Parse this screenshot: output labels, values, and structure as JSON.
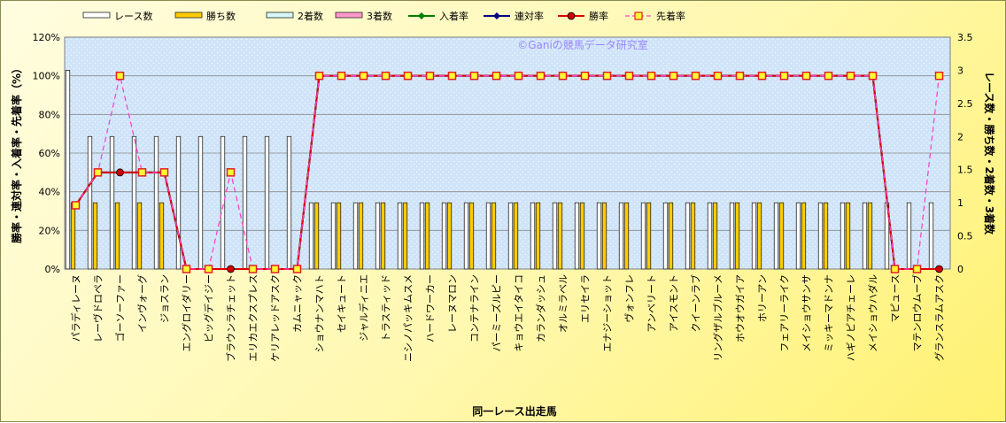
{
  "chart_data": {
    "type": "bar",
    "title": "",
    "watermark": "©Ganiの競馬データ研究室",
    "xlabel": "同一レース出走馬",
    "ylabel_left": "勝率・連対率・入着率・先着率（%）",
    "ylabel_right": "レース数・勝ち数・2着数・3着数",
    "ylim_left": [
      0,
      120
    ],
    "yticks_left": [
      "0%",
      "20%",
      "40%",
      "60%",
      "80%",
      "100%",
      "120%"
    ],
    "ylim_right": [
      0,
      3.5
    ],
    "yticks_right": [
      "0",
      "0.5",
      "1",
      "1.5",
      "2",
      "2.5",
      "3",
      "3.5"
    ],
    "grid": true,
    "legend_position": "top",
    "categories": [
      "パラディレーヌ",
      "レーヴドロペラ",
      "ゴーソーファー",
      "インヴォーグ",
      "ジョスラン",
      "エングロイダリー",
      "ピッグデイジー",
      "ブラウンラチェット",
      "エリカエクスプレス",
      "ケリアレッドアスク",
      "カムニャック",
      "ショウナンマハト",
      "セイキュート",
      "ジャルディニエ",
      "トラスティッド",
      "ニシノパッキムスメ",
      "ハードワーカー",
      "レーヌマロン",
      "コンテナライン",
      "パーミーズルピー",
      "キョウエイタイコ",
      "カランダッシュ",
      "オルミラベル",
      "エリセイラ",
      "エナジーショット",
      "ヴォンフレ",
      "アンベリート",
      "アイスモント",
      "クイーンラブ",
      "リングザルブルーメ",
      "ホウオウガイア",
      "ホリーアン",
      "フェアリーライク",
      "メイショウサンサ",
      "ミッキーマドンナ",
      "ハギノピアチェーレ",
      "メイショウハダル",
      "マピュース",
      "マテンロウムーブ",
      "グランスラムアスク"
    ],
    "series": [
      {
        "name": "レース数",
        "axis": "right",
        "kind": "bar",
        "color": "#ffffff",
        "values": [
          3,
          2,
          2,
          2,
          2,
          2,
          2,
          2,
          2,
          2,
          2,
          1,
          1,
          1,
          1,
          1,
          1,
          1,
          1,
          1,
          1,
          1,
          1,
          1,
          1,
          1,
          1,
          1,
          1,
          1,
          1,
          1,
          1,
          1,
          1,
          1,
          1,
          1,
          1,
          1
        ]
      },
      {
        "name": "勝ち数",
        "axis": "right",
        "kind": "bar",
        "color": "#ffcc00",
        "values": [
          1,
          1,
          1,
          1,
          1,
          0,
          0,
          0,
          0,
          0,
          0,
          1,
          1,
          1,
          1,
          1,
          1,
          1,
          1,
          1,
          1,
          1,
          1,
          1,
          1,
          1,
          1,
          1,
          1,
          1,
          1,
          1,
          1,
          1,
          1,
          1,
          1,
          0,
          0,
          0
        ]
      },
      {
        "name": "2着数",
        "axis": "right",
        "kind": "bar",
        "color": "#d8f8f8",
        "values": [
          0,
          0,
          0,
          0,
          0,
          0,
          0,
          0,
          0,
          0,
          0,
          0,
          0,
          0,
          0,
          0,
          0,
          0,
          0,
          0,
          0,
          0,
          0,
          0,
          0,
          0,
          0,
          0,
          0,
          0,
          0,
          0,
          0,
          0,
          0,
          0,
          0,
          0,
          0,
          0
        ]
      },
      {
        "name": "3着数",
        "axis": "right",
        "kind": "bar",
        "color": "#ff99cc",
        "values": [
          0,
          0,
          0,
          0,
          0,
          0,
          0,
          0,
          0,
          0,
          0,
          0,
          0,
          0,
          0,
          0,
          0,
          0,
          0,
          0,
          0,
          0,
          0,
          0,
          0,
          0,
          0,
          0,
          0,
          0,
          0,
          0,
          0,
          0,
          0,
          0,
          0,
          0,
          0,
          0
        ]
      },
      {
        "name": "入着率",
        "axis": "left",
        "kind": "line",
        "color": "#008000",
        "values": [
          33,
          50,
          50,
          50,
          50,
          0,
          0,
          0,
          0,
          0,
          0,
          100,
          100,
          100,
          100,
          100,
          100,
          100,
          100,
          100,
          100,
          100,
          100,
          100,
          100,
          100,
          100,
          100,
          100,
          100,
          100,
          100,
          100,
          100,
          100,
          100,
          100,
          0,
          0,
          0
        ]
      },
      {
        "name": "連対率",
        "axis": "left",
        "kind": "line",
        "color": "#000080",
        "values": [
          33,
          50,
          50,
          50,
          50,
          0,
          0,
          0,
          0,
          0,
          0,
          100,
          100,
          100,
          100,
          100,
          100,
          100,
          100,
          100,
          100,
          100,
          100,
          100,
          100,
          100,
          100,
          100,
          100,
          100,
          100,
          100,
          100,
          100,
          100,
          100,
          100,
          0,
          0,
          0
        ]
      },
      {
        "name": "勝率",
        "axis": "left",
        "kind": "line",
        "color": "#e00000",
        "values": [
          33,
          50,
          50,
          50,
          50,
          0,
          0,
          0,
          0,
          0,
          0,
          100,
          100,
          100,
          100,
          100,
          100,
          100,
          100,
          100,
          100,
          100,
          100,
          100,
          100,
          100,
          100,
          100,
          100,
          100,
          100,
          100,
          100,
          100,
          100,
          100,
          100,
          0,
          0,
          0
        ]
      },
      {
        "name": "先着率",
        "axis": "left",
        "kind": "dashed",
        "color": "#ff44cc",
        "values": [
          33,
          50,
          100,
          50,
          50,
          0,
          0,
          50,
          0,
          0,
          0,
          100,
          100,
          100,
          100,
          100,
          100,
          100,
          100,
          100,
          100,
          100,
          100,
          100,
          100,
          100,
          100,
          100,
          100,
          100,
          100,
          100,
          100,
          100,
          100,
          100,
          100,
          0,
          0,
          100
        ]
      }
    ],
    "markers_round_at": [
      2,
      7,
      39
    ]
  }
}
